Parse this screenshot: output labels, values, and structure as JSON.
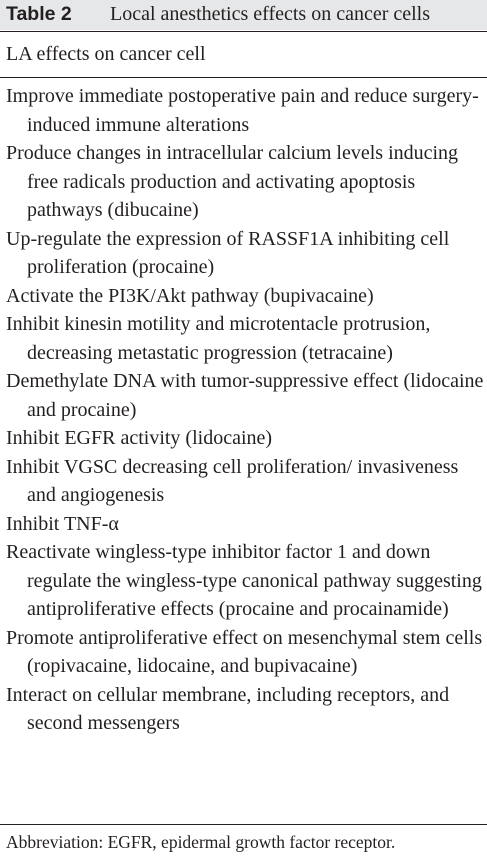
{
  "table": {
    "label": "Table 2",
    "title": "Local anesthetics effects on cancer cells",
    "column_header": "LA effects on cancer cell",
    "rows": [
      "Improve immediate postoperative pain and reduce surgery-induced immune alterations",
      "Produce changes in intracellular calcium levels inducing free radicals production and activating apoptosis pathways (dibucaine)",
      "Up-regulate the expression of RASSF1A inhibiting cell proliferation (procaine)",
      "Activate the PI3K/Akt pathway (bupivacaine)",
      "Inhibit kinesin motility and microtentacle protrusion, decreasing metastatic progression (tetracaine)",
      "Demethylate DNA with tumor-suppressive effect (lidocaine and procaine)",
      "Inhibit EGFR activity (lidocaine)",
      "Inhibit VGSC decreasing cell proliferation/ invasiveness and angiogenesis",
      "Inhibit TNF-α",
      "Reactivate wingless-type inhibitor factor 1 and down regulate the wingless-type canonical pathway suggesting antiproliferative effects (procaine and procainamide)",
      "Promote antiproliferative effect on mesenchymal stem cells (ropivacaine, lidocaine, and bupivacaine)",
      "Interact on cellular membrane, including receptors, and second messengers"
    ],
    "footnote": "Abbreviation: EGFR, epidermal growth factor receptor."
  },
  "colors": {
    "caption_background": "#e6e7e8",
    "text": "#231f20",
    "rules": "#231f20"
  }
}
